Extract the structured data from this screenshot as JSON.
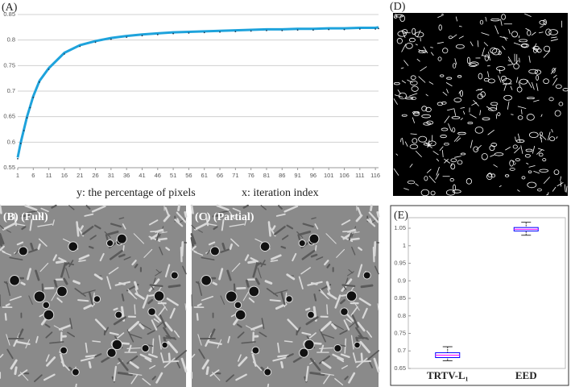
{
  "panels": {
    "a": "(A)",
    "b": "(B) (Full)",
    "c": "(C) (Partial)",
    "d": "(D)",
    "e": "(E)"
  },
  "chart_data": [
    {
      "type": "line",
      "ylabel": "y: the percentage of pixels",
      "xlabel": "x: iteration index",
      "x": [
        1,
        2,
        3,
        4,
        5,
        6,
        8,
        11,
        16,
        21,
        26,
        31,
        36,
        41,
        46,
        51,
        56,
        61,
        66,
        71,
        76,
        81,
        86,
        91,
        96,
        101,
        106,
        111,
        116,
        117
      ],
      "series": [
        {
          "color": "#1ea3dc",
          "values": [
            0.57,
            0.6,
            0.625,
            0.65,
            0.67,
            0.69,
            0.72,
            0.745,
            0.775,
            0.79,
            0.798,
            0.804,
            0.808,
            0.811,
            0.813,
            0.815,
            0.816,
            0.817,
            0.818,
            0.819,
            0.82,
            0.821,
            0.821,
            0.822,
            0.822,
            0.823,
            0.823,
            0.824,
            0.824,
            0.825
          ]
        }
      ],
      "xlim": [
        1,
        117
      ],
      "xticks": [
        1,
        6,
        11,
        16,
        21,
        26,
        31,
        36,
        41,
        46,
        51,
        56,
        61,
        66,
        71,
        76,
        81,
        86,
        91,
        96,
        101,
        106,
        111,
        116
      ],
      "ylim": [
        0.55,
        0.85
      ],
      "yticks": [
        0.55,
        0.6,
        0.65,
        0.7,
        0.75,
        0.8,
        0.85
      ],
      "grid": true
    },
    {
      "type": "box",
      "categories": [
        "TRTV-L₁",
        "EED"
      ],
      "color": "#0000ff",
      "median_color": "#ff00ff",
      "series": [
        {
          "low": 0.672,
          "q1": 0.681,
          "median": 0.688,
          "q3": 0.695,
          "high": 0.712
        },
        {
          "low": 1.03,
          "q1": 1.042,
          "median": 1.047,
          "q3": 1.052,
          "high": 1.067
        }
      ],
      "ylim": [
        0.65,
        1.08
      ],
      "yticks": [
        0.65,
        0.7,
        0.75,
        0.8,
        0.85,
        0.9,
        0.95,
        1,
        1.05
      ]
    }
  ]
}
